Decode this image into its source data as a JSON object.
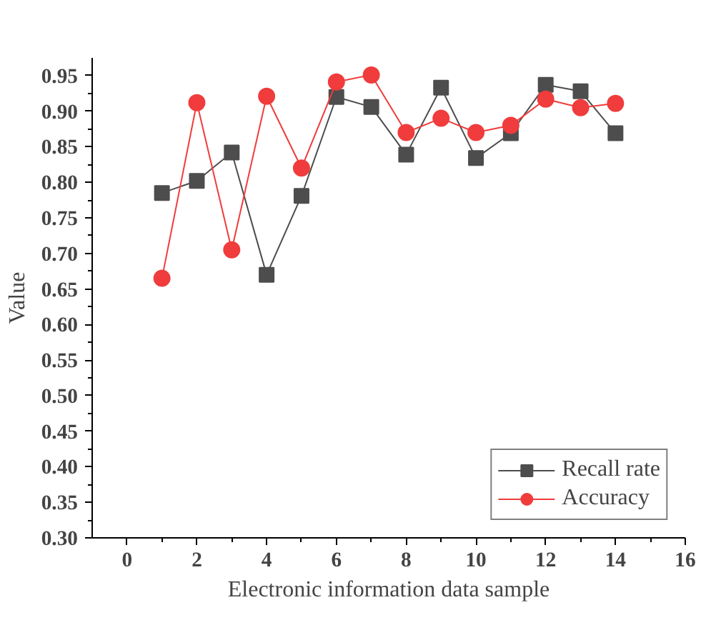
{
  "chart_data": {
    "type": "line",
    "xlabel": "Electronic information data sample",
    "ylabel": "Value",
    "x": [
      1,
      2,
      3,
      4,
      5,
      6,
      7,
      8,
      9,
      10,
      11,
      12,
      13,
      14
    ],
    "series": [
      {
        "name": "Recall rate",
        "color": "#4d4d4d",
        "marker": "square",
        "values": [
          0.785,
          0.802,
          0.842,
          0.67,
          0.781,
          0.92,
          0.906,
          0.839,
          0.933,
          0.834,
          0.869,
          0.937,
          0.928,
          0.869
        ]
      },
      {
        "name": "Accuracy",
        "color": "#f03c3c",
        "marker": "circle",
        "values": [
          0.665,
          0.912,
          0.705,
          0.921,
          0.82,
          0.941,
          0.951,
          0.87,
          0.89,
          0.87,
          0.88,
          0.917,
          0.905,
          0.911
        ]
      }
    ],
    "xlim": [
      -1,
      16
    ],
    "xticks": [
      0,
      2,
      4,
      6,
      8,
      10,
      12,
      14,
      16
    ],
    "ylim": [
      0.3,
      0.975
    ],
    "yticks": [
      {
        "value": 0.3,
        "label": "0.30"
      },
      {
        "value": 0.35,
        "label": "0.35"
      },
      {
        "value": 0.4,
        "label": "0.40"
      },
      {
        "value": 0.45,
        "label": "0.45"
      },
      {
        "value": 0.5,
        "label": "0.50"
      },
      {
        "value": 0.55,
        "label": "0.55"
      },
      {
        "value": 0.6,
        "label": "0.60"
      },
      {
        "value": 0.65,
        "label": "0.65"
      },
      {
        "value": 0.7,
        "label": "0.70"
      },
      {
        "value": 0.75,
        "label": "0.75"
      },
      {
        "value": 0.8,
        "label": "0.80"
      },
      {
        "value": 0.85,
        "label": "0.85"
      },
      {
        "value": 0.9,
        "label": "0.90"
      },
      {
        "value": 0.95,
        "label": "0.95"
      }
    ],
    "grid": false,
    "legend": "bottom right",
    "line_style": "solid"
  }
}
